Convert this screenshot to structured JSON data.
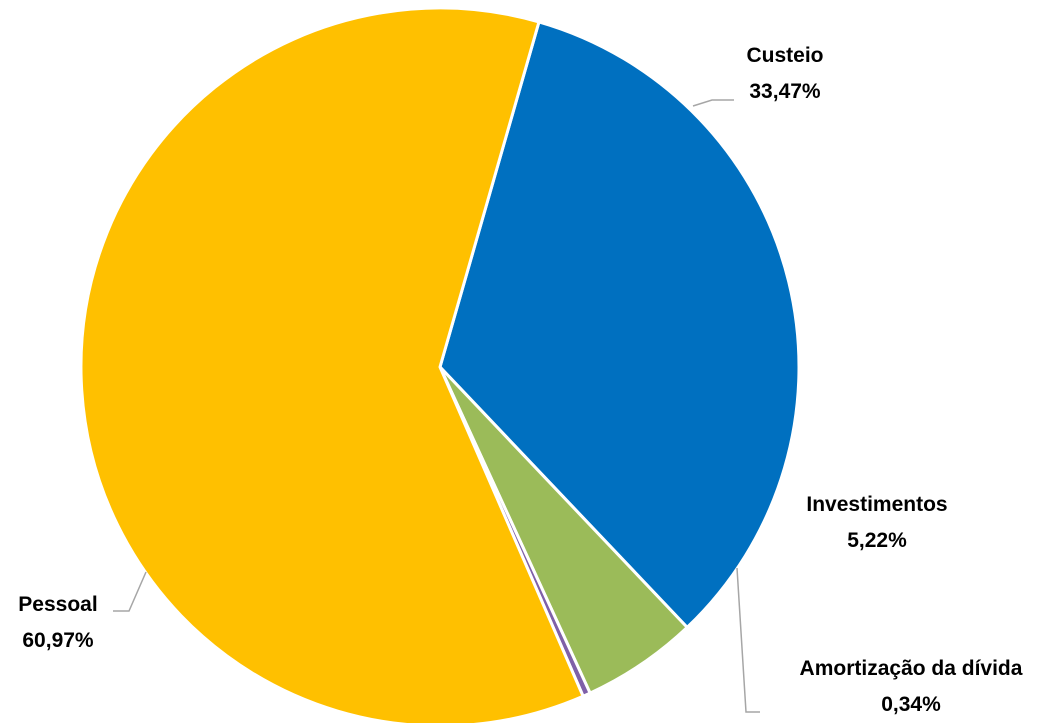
{
  "chart_data": {
    "type": "pie",
    "title": "",
    "slices": [
      {
        "name": "Custeio",
        "value": 33.47,
        "label": "33,47%",
        "color": "#0070C0"
      },
      {
        "name": "Investimentos",
        "value": 5.22,
        "label": "5,22%",
        "color": "#9BBB59"
      },
      {
        "name": "Amortização da dívida",
        "value": 0.34,
        "label": "0,34%",
        "color": "#7F60A8"
      },
      {
        "name": "Pessoal",
        "value": 60.97,
        "label": "60,97%",
        "color": "#FFC000"
      }
    ],
    "start_angle_deg": 16,
    "direction": "clockwise",
    "legend": "none",
    "labels": "outside with leader lines"
  }
}
